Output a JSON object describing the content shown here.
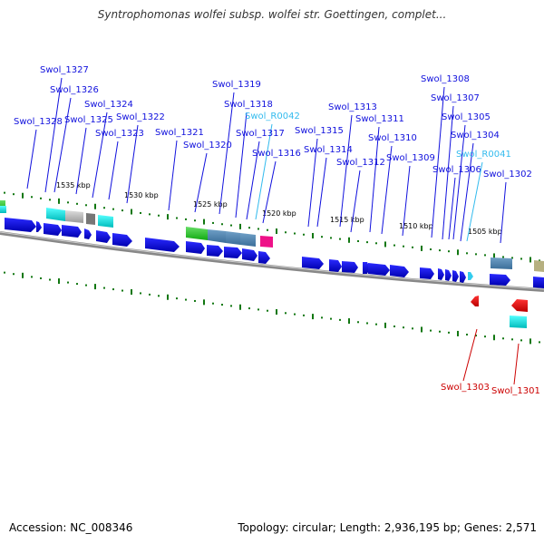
{
  "title": "Syntrophomonas wolfei subsp. wolfei str. Goettingen, complet...",
  "footer": {
    "accession": "Accession: NC_008346",
    "summary": "Topology: circular; Length: 2,936,195 bp; Genes: 2,571"
  },
  "colors": {
    "cds": "#1010dd",
    "rna_label": "#33bbee",
    "reverse_label": "#cc0000",
    "tick": "#117711",
    "backbone": "#777777"
  },
  "kbp_labels": [
    "1535 kbp",
    "1530 kbp",
    "1525 kbp",
    "1520 kbp",
    "1515 kbp",
    "1510 kbp",
    "1505 kbp"
  ],
  "forward_genes": [
    {
      "label": "Swol_1328",
      "kind": "cds"
    },
    {
      "label": "Swol_1327",
      "kind": "cds"
    },
    {
      "label": "Swol_1326",
      "kind": "cds"
    },
    {
      "label": "Swol_1325",
      "kind": "cds"
    },
    {
      "label": "Swol_1324",
      "kind": "cds"
    },
    {
      "label": "Swol_1323",
      "kind": "cds"
    },
    {
      "label": "Swol_1322",
      "kind": "cds"
    },
    {
      "label": "Swol_1321",
      "kind": "cds"
    },
    {
      "label": "Swol_1320",
      "kind": "cds"
    },
    {
      "label": "Swol_1319",
      "kind": "cds"
    },
    {
      "label": "Swol_1318",
      "kind": "cds"
    },
    {
      "label": "Swol_R0042",
      "kind": "rna"
    },
    {
      "label": "Swol_1317",
      "kind": "cds"
    },
    {
      "label": "Swol_1316",
      "kind": "cds"
    },
    {
      "label": "Swol_1315",
      "kind": "cds"
    },
    {
      "label": "Swol_1314",
      "kind": "cds"
    },
    {
      "label": "Swol_1313",
      "kind": "cds"
    },
    {
      "label": "Swol_1312",
      "kind": "cds"
    },
    {
      "label": "Swol_1311",
      "kind": "cds"
    },
    {
      "label": "Swol_1310",
      "kind": "cds"
    },
    {
      "label": "Swol_1309",
      "kind": "cds"
    },
    {
      "label": "Swol_1308",
      "kind": "cds"
    },
    {
      "label": "Swol_1307",
      "kind": "cds"
    },
    {
      "label": "Swol_1306",
      "kind": "cds"
    },
    {
      "label": "Swol_1305",
      "kind": "cds"
    },
    {
      "label": "Swol_1304",
      "kind": "cds"
    },
    {
      "label": "Swol_R0041",
      "kind": "rna"
    },
    {
      "label": "Swol_1302",
      "kind": "cds"
    }
  ],
  "reverse_genes": [
    {
      "label": "Swol_1303",
      "kind": "cds"
    },
    {
      "label": "Swol_1301",
      "kind": "cds"
    }
  ]
}
